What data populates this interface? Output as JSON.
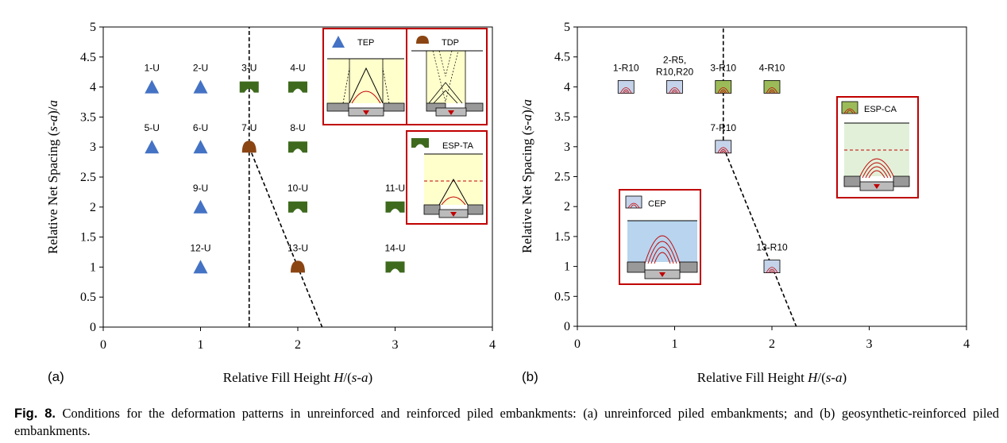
{
  "colors": {
    "tep": "#4472C4",
    "tdp": "#8B4513",
    "esp": "#3E6A1E",
    "box_red": "#C00000",
    "reinforced_fill": "#C5D3EA",
    "esp_ca_fill": "#9BBB59",
    "fill_yellow": "#FFFFCC",
    "cep_fill": "#B8D4EE",
    "esp_ca_region": "#E2F0D9"
  },
  "chart_data": [
    {
      "panel_label": "(a)",
      "type": "scatter",
      "xlabel": "Relative Fill Height H/(s-a)",
      "ylabel": "Relative Net Spacing (s-a)/a",
      "xlim": [
        0,
        4
      ],
      "ylim": [
        0,
        5
      ],
      "x_ticks": [
        "0",
        "1",
        "2",
        "3",
        "4"
      ],
      "y_ticks": [
        "0",
        "0.5",
        "1",
        "1.5",
        "2",
        "2.5",
        "3",
        "3.5",
        "4",
        "4.5",
        "5"
      ],
      "grid": false,
      "points": [
        {
          "label": "1-U",
          "x": 0.5,
          "y": 4,
          "pattern": "TEP"
        },
        {
          "label": "2-U",
          "x": 1,
          "y": 4,
          "pattern": "TEP"
        },
        {
          "label": "3-U",
          "x": 1.5,
          "y": 4,
          "pattern": "ESP-TA"
        },
        {
          "label": "4-U",
          "x": 2,
          "y": 4,
          "pattern": "ESP-TA"
        },
        {
          "label": "5-U",
          "x": 0.5,
          "y": 3,
          "pattern": "TEP"
        },
        {
          "label": "6-U",
          "x": 1,
          "y": 3,
          "pattern": "TEP"
        },
        {
          "label": "7-U",
          "x": 1.5,
          "y": 3,
          "pattern": "TDP"
        },
        {
          "label": "8-U",
          "x": 2,
          "y": 3,
          "pattern": "ESP-TA"
        },
        {
          "label": "9-U",
          "x": 1,
          "y": 2,
          "pattern": "TEP"
        },
        {
          "label": "10-U",
          "x": 2,
          "y": 2,
          "pattern": "ESP-TA"
        },
        {
          "label": "11-U",
          "x": 3,
          "y": 2,
          "pattern": "ESP-TA"
        },
        {
          "label": "12-U",
          "x": 1,
          "y": 1,
          "pattern": "TEP"
        },
        {
          "label": "13-U",
          "x": 2,
          "y": 1,
          "pattern": "TDP"
        },
        {
          "label": "14-U",
          "x": 3,
          "y": 1,
          "pattern": "ESP-TA"
        }
      ],
      "boundary_lines": [
        {
          "style": "dashed",
          "points": [
            [
              1.5,
              0
            ],
            [
              1.5,
              5
            ]
          ]
        },
        {
          "style": "dashed",
          "points": [
            [
              1.5,
              3
            ],
            [
              2.25,
              0
            ]
          ]
        }
      ],
      "legend": [
        {
          "key": "TEP",
          "label": "TEP"
        },
        {
          "key": "TDP",
          "label": "TDP"
        },
        {
          "key": "ESP-TA",
          "label": "ESP-TA"
        }
      ]
    },
    {
      "panel_label": "(b)",
      "type": "scatter",
      "xlabel": "Relative Fill Height H/(s-a)",
      "ylabel": "Relative Net Spacing (s-a)/a",
      "xlim": [
        0,
        4
      ],
      "ylim": [
        0,
        5
      ],
      "x_ticks": [
        "0",
        "1",
        "2",
        "3",
        "4"
      ],
      "y_ticks": [
        "0",
        "0.5",
        "1",
        "1.5",
        "2",
        "2.5",
        "3",
        "3.5",
        "4",
        "4.5",
        "5"
      ],
      "grid": false,
      "points": [
        {
          "label": "1-R10",
          "x": 0.5,
          "y": 4,
          "pattern": "CEP"
        },
        {
          "label": "2-R5, R10,R20",
          "x": 1,
          "y": 4,
          "pattern": "CEP"
        },
        {
          "label": "3-R10",
          "x": 1.5,
          "y": 4,
          "pattern": "ESP-CA"
        },
        {
          "label": "4-R10",
          "x": 2,
          "y": 4,
          "pattern": "ESP-CA"
        },
        {
          "label": "7-R10",
          "x": 1.5,
          "y": 3,
          "pattern": "CEP"
        },
        {
          "label": "13-R10",
          "x": 2,
          "y": 1,
          "pattern": "CEP"
        }
      ],
      "boundary_lines": [
        {
          "style": "dashed",
          "points": [
            [
              1.5,
              3
            ],
            [
              1.5,
              5
            ]
          ]
        },
        {
          "style": "dashed",
          "points": [
            [
              1.5,
              3
            ],
            [
              2.25,
              0
            ]
          ]
        }
      ],
      "legend": [
        {
          "key": "CEP",
          "label": "CEP"
        },
        {
          "key": "ESP-CA",
          "label": "ESP-CA"
        }
      ]
    }
  ],
  "caption": {
    "fig_label": "Fig. 8.",
    "text": " Conditions for the deformation patterns in unreinforced and reinforced piled embankments: (a) unreinforced piled embankments; and (b) geosynthetic-reinforced piled embankments."
  }
}
